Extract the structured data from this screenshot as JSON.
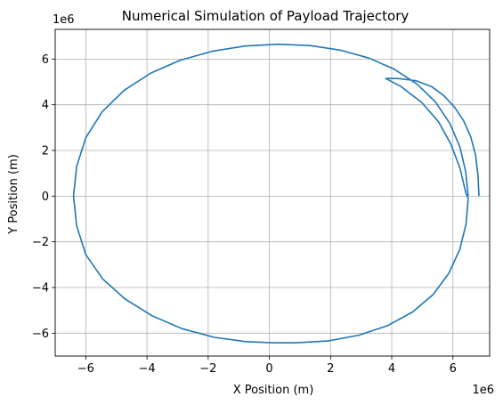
{
  "chart_data": {
    "type": "line",
    "title": "Numerical Simulation of Payload Trajectory",
    "xlabel": "X Position (m)",
    "ylabel": "Y Position (m)",
    "x_multiplier": "1e6",
    "y_multiplier": "1e6",
    "xlim": [
      -7.0,
      7.2
    ],
    "ylim": [
      -7.0,
      7.3
    ],
    "xticks": [
      -6,
      -4,
      -2,
      0,
      2,
      4,
      6
    ],
    "xtick_labels": [
      "−6",
      "−4",
      "−2",
      "0",
      "2",
      "4",
      "6"
    ],
    "yticks": [
      -6,
      -4,
      -2,
      0,
      2,
      4,
      6
    ],
    "ytick_labels": [
      "−6",
      "−4",
      "−2",
      "0",
      "2",
      "4",
      "6"
    ],
    "grid": true,
    "series": [
      {
        "color": "#1f77b4",
        "x": [
          6.85,
          6.82,
          6.74,
          6.58,
          6.35,
          6.05,
          5.7,
          5.3,
          4.8,
          4.2,
          3.8,
          3.8,
          4.29,
          4.98,
          5.53,
          5.93,
          6.23,
          6.43,
          6.5,
          6.43,
          6.22,
          5.86,
          5.35,
          4.68,
          3.86,
          2.92,
          1.91,
          0.87,
          0.1,
          -0.78,
          -1.8,
          -2.86,
          -3.83,
          -4.71,
          -5.45,
          -6.0,
          -6.3,
          -6.4,
          -6.3,
          -6.0,
          -5.46,
          -4.74,
          -3.87,
          -2.91,
          -1.87,
          -0.8,
          0.28,
          1.33,
          2.33,
          3.26,
          4.09,
          4.82,
          5.43,
          5.9,
          6.23,
          6.42,
          6.5
        ],
        "y": [
          0.0,
          0.9,
          1.8,
          2.6,
          3.3,
          3.9,
          4.4,
          4.8,
          5.05,
          5.15,
          5.15,
          5.15,
          4.81,
          4.1,
          3.25,
          2.28,
          1.22,
          0.1,
          -0.1,
          -1.22,
          -2.35,
          -3.39,
          -4.31,
          -5.07,
          -5.67,
          -6.09,
          -6.34,
          -6.42,
          -6.42,
          -6.37,
          -6.18,
          -5.8,
          -5.24,
          -4.51,
          -3.62,
          -2.56,
          -1.3,
          0.0,
          1.3,
          2.56,
          3.7,
          4.64,
          5.39,
          5.95,
          6.34,
          6.57,
          6.65,
          6.59,
          6.39,
          6.04,
          5.55,
          4.91,
          4.12,
          3.18,
          2.14,
          1.05,
          0.0
        ]
      }
    ]
  }
}
